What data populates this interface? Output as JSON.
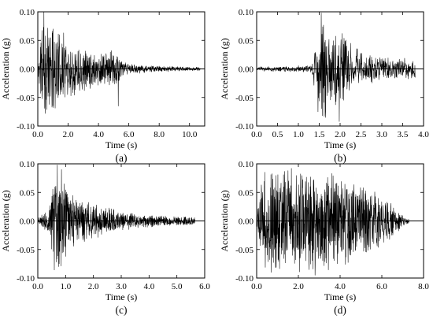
{
  "figure": {
    "panel_count": 4,
    "line_color": "#000000",
    "background": "#ffffff"
  },
  "chart_data": [
    {
      "type": "line",
      "caption": "(a)",
      "xlabel": "Time (s)",
      "ylabel": "Acceleration (g)",
      "xlim": [
        0,
        11
      ],
      "ylim": [
        -0.1,
        0.1
      ],
      "xticks": [
        0,
        2,
        4,
        6,
        8,
        10
      ],
      "xtick_labels": [
        "0.0",
        "2.0",
        "4.0",
        "6.0",
        "8.0",
        "10.0"
      ],
      "yticks": [
        0.1,
        0.05,
        0,
        -0.05,
        -0.1
      ],
      "ytick_labels": [
        "0.10",
        "0.05",
        "0.00",
        "-0.05",
        "-0.10"
      ],
      "grid": false,
      "legend": "none",
      "series": [
        {
          "envelope": [
            [
              0,
              0.008
            ],
            [
              0.3,
              0.1
            ],
            [
              0.8,
              0.075
            ],
            [
              1.6,
              0.06
            ],
            [
              2.5,
              0.045
            ],
            [
              3.5,
              0.033
            ],
            [
              4.5,
              0.03
            ],
            [
              5.2,
              0.034
            ],
            [
              5.6,
              0.012
            ],
            [
              7,
              0.006
            ],
            [
              10.7,
              0.003
            ]
          ],
          "dt": 0.013,
          "duration": 10.7,
          "peaks": [
            [
              0.4,
              0.1
            ],
            [
              0.5,
              -0.078
            ],
            [
              1.0,
              0.07
            ],
            [
              1.7,
              0.063
            ],
            [
              5.3,
              -0.065
            ]
          ],
          "seed": 11
        }
      ]
    },
    {
      "type": "line",
      "caption": "(b)",
      "xlabel": "Time (s)",
      "ylabel": "Acceleration (g)",
      "xlim": [
        0,
        4
      ],
      "ylim": [
        -0.1,
        0.1
      ],
      "xticks": [
        0,
        0.5,
        1,
        1.5,
        2,
        2.5,
        3,
        3.5,
        4
      ],
      "xtick_labels": [
        "0.0",
        "0.5",
        "1.0",
        "1.5",
        "2.0",
        "2.5",
        "3.0",
        "3.5",
        "4.0"
      ],
      "yticks": [
        0.1,
        0.05,
        0,
        -0.05,
        -0.1
      ],
      "ytick_labels": [
        "0.10",
        "0.05",
        "0.00",
        "-0.05",
        "-0.10"
      ],
      "grid": false,
      "legend": "none",
      "series": [
        {
          "envelope": [
            [
              0,
              0.004
            ],
            [
              1.3,
              0.006
            ],
            [
              1.45,
              0.05
            ],
            [
              1.6,
              0.095
            ],
            [
              1.75,
              0.07
            ],
            [
              2.0,
              0.065
            ],
            [
              2.2,
              0.045
            ],
            [
              2.6,
              0.025
            ],
            [
              3.2,
              0.02
            ],
            [
              3.8,
              0.017
            ]
          ],
          "dt": 0.006,
          "duration": 3.8,
          "peaks": [
            [
              1.55,
              0.098
            ],
            [
              1.47,
              -0.075
            ],
            [
              1.65,
              -0.085
            ],
            [
              1.98,
              -0.092
            ],
            [
              2.05,
              0.062
            ],
            [
              2.25,
              0.045
            ]
          ],
          "seed": 23
        }
      ]
    },
    {
      "type": "line",
      "caption": "(c)",
      "xlabel": "Time (s)",
      "ylabel": "Acceleration (g)",
      "xlim": [
        0,
        6
      ],
      "ylim": [
        -0.1,
        0.1
      ],
      "xticks": [
        0,
        1,
        2,
        3,
        4,
        5,
        6
      ],
      "xtick_labels": [
        "0.0",
        "1.0",
        "2.0",
        "3.0",
        "4.0",
        "5.0",
        "6.0"
      ],
      "yticks": [
        0.1,
        0.05,
        0,
        -0.05,
        -0.1
      ],
      "ytick_labels": [
        "0.10",
        "0.05",
        "0.00",
        "-0.05",
        "-0.10"
      ],
      "grid": false,
      "legend": "none",
      "series": [
        {
          "envelope": [
            [
              0,
              0.005
            ],
            [
              0.4,
              0.02
            ],
            [
              0.65,
              0.1
            ],
            [
              0.9,
              0.075
            ],
            [
              1.2,
              0.045
            ],
            [
              2.0,
              0.03
            ],
            [
              3.0,
              0.016
            ],
            [
              4.5,
              0.009
            ],
            [
              5.7,
              0.006
            ]
          ],
          "dt": 0.006,
          "duration": 5.65,
          "peaks": [
            [
              0.7,
              0.098
            ],
            [
              0.75,
              -0.08
            ],
            [
              0.85,
              0.09
            ],
            [
              1.0,
              -0.062
            ],
            [
              0.95,
              0.065
            ]
          ],
          "seed": 37
        }
      ]
    },
    {
      "type": "line",
      "caption": "(d)",
      "xlabel": "Time (s)",
      "ylabel": "Acceleration (g)",
      "xlim": [
        0,
        8
      ],
      "ylim": [
        -0.1,
        0.1
      ],
      "xticks": [
        0,
        2,
        4,
        6,
        8
      ],
      "xtick_labels": [
        "0.0",
        "2.0",
        "4.0",
        "6.0",
        "8.0"
      ],
      "yticks": [
        0.1,
        0.05,
        0,
        -0.05,
        -0.1
      ],
      "ytick_labels": [
        "0.10",
        "0.05",
        "0.00",
        "-0.05",
        "-0.10"
      ],
      "grid": false,
      "legend": "none",
      "series": [
        {
          "envelope": [
            [
              0,
              0.01
            ],
            [
              0.3,
              0.085
            ],
            [
              1.5,
              0.09
            ],
            [
              3.0,
              0.085
            ],
            [
              4.5,
              0.075
            ],
            [
              5.5,
              0.055
            ],
            [
              6.5,
              0.028
            ],
            [
              7.0,
              0.01
            ],
            [
              7.3,
              0.003
            ]
          ],
          "dt": 0.009,
          "duration": 7.3,
          "peaks": [
            [
              0.7,
              -0.09
            ],
            [
              2.8,
              -0.095
            ],
            [
              1.5,
              0.088
            ],
            [
              3.6,
              0.083
            ]
          ],
          "seed": 53
        }
      ]
    }
  ]
}
